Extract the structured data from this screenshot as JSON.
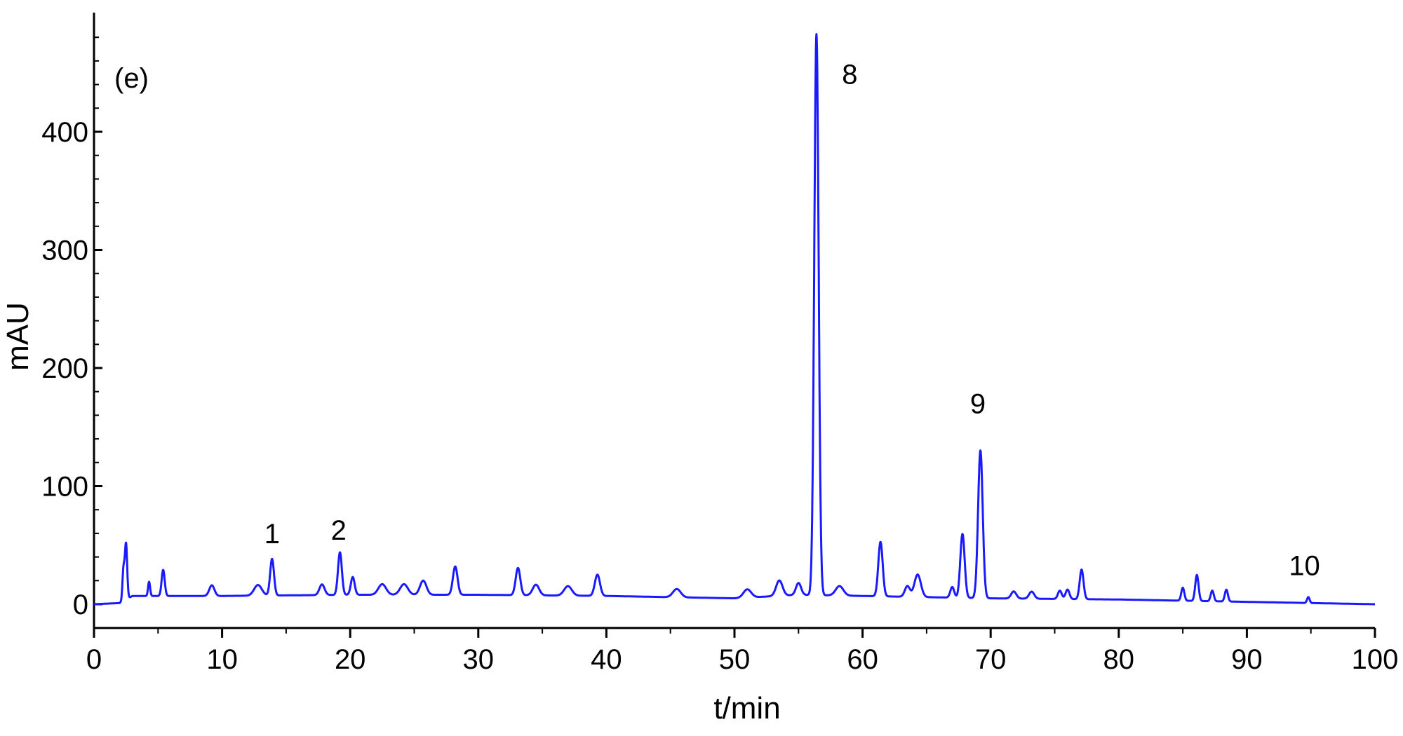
{
  "chart_data": {
    "type": "line",
    "panel_label": "(e)",
    "xlabel": "t/min",
    "ylabel": "mAU",
    "xlim": [
      0,
      100
    ],
    "ylim": [
      -10,
      500
    ],
    "x_ticks": [
      0,
      10,
      20,
      30,
      40,
      50,
      60,
      70,
      80,
      90,
      100
    ],
    "y_ticks": [
      0,
      100,
      200,
      300,
      400
    ],
    "grid": false,
    "series": [
      {
        "color": "#1a1aff",
        "baseline": [
          [
            0,
            0
          ],
          [
            2,
            1
          ],
          [
            3,
            7
          ],
          [
            10,
            7
          ],
          [
            20,
            8
          ],
          [
            30,
            8
          ],
          [
            40,
            7
          ],
          [
            50,
            5
          ],
          [
            55,
            8
          ],
          [
            60,
            7
          ],
          [
            70,
            5
          ],
          [
            80,
            4
          ],
          [
            90,
            2
          ],
          [
            100,
            0
          ]
        ],
        "peaks": [
          {
            "t": 2.3,
            "h": 26,
            "w": 0.08
          },
          {
            "t": 2.5,
            "h": 47,
            "w": 0.09
          },
          {
            "t": 4.3,
            "h": 12,
            "w": 0.08
          },
          {
            "t": 5.4,
            "h": 22,
            "w": 0.12
          },
          {
            "t": 9.2,
            "h": 9,
            "w": 0.2
          },
          {
            "t": 12.8,
            "h": 9,
            "w": 0.3
          },
          {
            "t": 13.9,
            "h": 31,
            "w": 0.15
          },
          {
            "t": 17.8,
            "h": 9,
            "w": 0.2
          },
          {
            "t": 19.2,
            "h": 36,
            "w": 0.15
          },
          {
            "t": 20.2,
            "h": 15,
            "w": 0.15
          },
          {
            "t": 22.5,
            "h": 9,
            "w": 0.3
          },
          {
            "t": 24.2,
            "h": 9,
            "w": 0.3
          },
          {
            "t": 25.7,
            "h": 12,
            "w": 0.25
          },
          {
            "t": 28.2,
            "h": 24,
            "w": 0.18
          },
          {
            "t": 33.1,
            "h": 23,
            "w": 0.18
          },
          {
            "t": 34.5,
            "h": 9,
            "w": 0.25
          },
          {
            "t": 37.0,
            "h": 8,
            "w": 0.3
          },
          {
            "t": 39.3,
            "h": 18,
            "w": 0.2
          },
          {
            "t": 45.5,
            "h": 7,
            "w": 0.3
          },
          {
            "t": 51.0,
            "h": 7,
            "w": 0.3
          },
          {
            "t": 53.5,
            "h": 13,
            "w": 0.25
          },
          {
            "t": 55.0,
            "h": 10,
            "w": 0.2
          },
          {
            "t": 56.4,
            "h": 475,
            "w": 0.17
          },
          {
            "t": 58.2,
            "h": 8,
            "w": 0.3
          },
          {
            "t": 61.4,
            "h": 46,
            "w": 0.17
          },
          {
            "t": 63.5,
            "h": 9,
            "w": 0.2
          },
          {
            "t": 64.3,
            "h": 19,
            "w": 0.25
          },
          {
            "t": 67.0,
            "h": 9,
            "w": 0.15
          },
          {
            "t": 67.8,
            "h": 54,
            "w": 0.17
          },
          {
            "t": 69.2,
            "h": 125,
            "w": 0.18
          },
          {
            "t": 71.8,
            "h": 6,
            "w": 0.2
          },
          {
            "t": 73.2,
            "h": 6,
            "w": 0.2
          },
          {
            "t": 75.4,
            "h": 7,
            "w": 0.15
          },
          {
            "t": 76.0,
            "h": 8,
            "w": 0.15
          },
          {
            "t": 77.1,
            "h": 25,
            "w": 0.15
          },
          {
            "t": 85.0,
            "h": 11,
            "w": 0.12
          },
          {
            "t": 86.1,
            "h": 22,
            "w": 0.13
          },
          {
            "t": 87.3,
            "h": 9,
            "w": 0.12
          },
          {
            "t": 88.4,
            "h": 10,
            "w": 0.12
          },
          {
            "t": 94.8,
            "h": 5,
            "w": 0.1
          }
        ]
      }
    ],
    "annotations": [
      {
        "text": "1",
        "x": 13.9,
        "y": 60
      },
      {
        "text": "2",
        "x": 19.1,
        "y": 63
      },
      {
        "text": "8",
        "x": 59.0,
        "y": 449
      },
      {
        "text": "9",
        "x": 69.0,
        "y": 170
      },
      {
        "text": "10",
        "x": 94.5,
        "y": 33
      }
    ]
  }
}
